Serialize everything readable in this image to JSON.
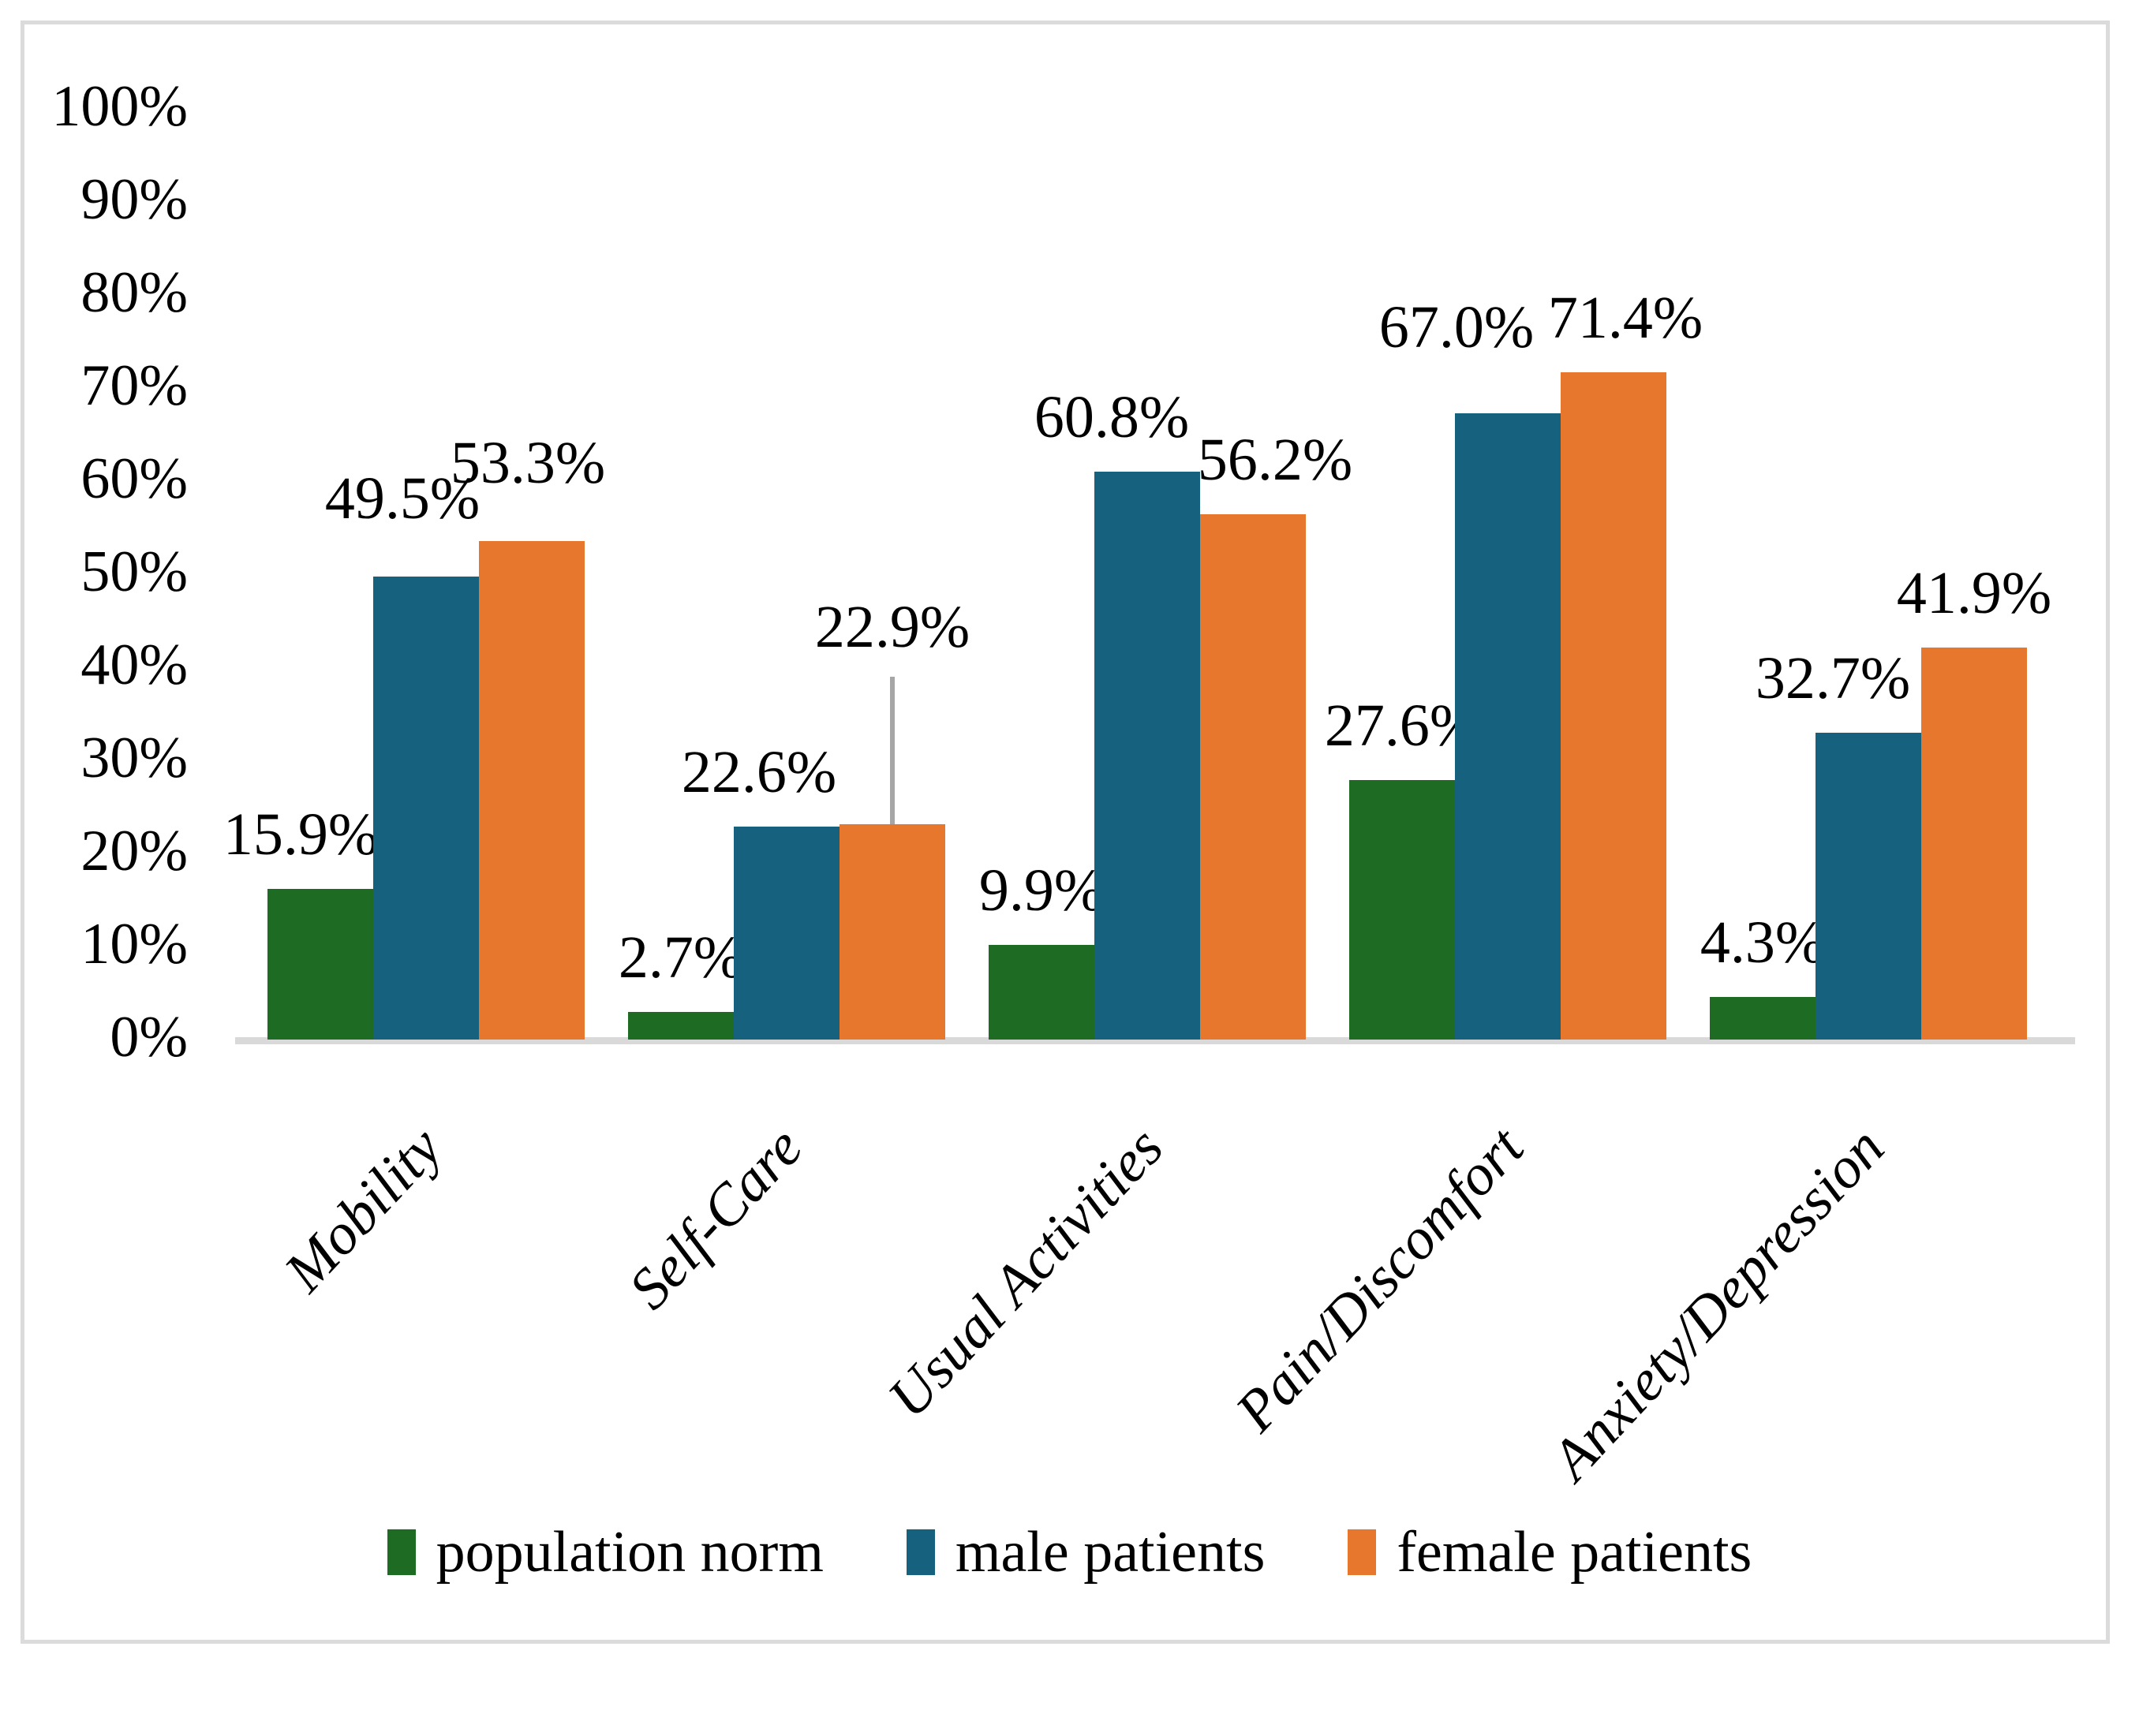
{
  "chart_data": {
    "type": "bar",
    "title": "",
    "categories": [
      "Mobility",
      "Self-Care",
      "Usual Activities",
      "Pain/Discomfort",
      "Anxiety/Depression"
    ],
    "series": [
      {
        "name": "population norm",
        "color": "#1E6B24",
        "values": [
          15.9,
          2.7,
          9.9,
          27.6,
          4.3
        ],
        "data_labels": [
          "15.9%",
          "2.7%",
          "9.9%",
          "27.6%",
          "4.3%"
        ]
      },
      {
        "name": "male patients",
        "color": "#16617E",
        "values": [
          49.5,
          22.6,
          60.8,
          67.0,
          32.7
        ],
        "data_labels": [
          "49.5%",
          "22.6%",
          "60.8%",
          "67.0%",
          "32.7%"
        ]
      },
      {
        "name": "female patients",
        "color": "#E8772E",
        "values": [
          53.3,
          22.9,
          56.2,
          71.4,
          41.9
        ],
        "data_labels": [
          "53.3%",
          "22.9%",
          "56.2%",
          "71.4%",
          "41.9%"
        ]
      }
    ],
    "y_axis": {
      "min": 0,
      "max": 100,
      "step": 10,
      "tick_labels": [
        "0%",
        "10%",
        "20%",
        "30%",
        "40%",
        "50%",
        "60%",
        "70%",
        "80%",
        "90%",
        "100%"
      ]
    },
    "grid": false,
    "legend_position": "bottom",
    "annotations": [
      {
        "type": "leader-line",
        "category": "Self-Care",
        "series": "female patients",
        "label": "22.9%",
        "color": "#A6A6A6"
      }
    ],
    "colors": {
      "axis_line": "#D9D9D9",
      "frame_border": "#DBDBDB",
      "leader_line": "#A6A6A6",
      "text": "#000000",
      "background": "#FFFFFF"
    }
  }
}
